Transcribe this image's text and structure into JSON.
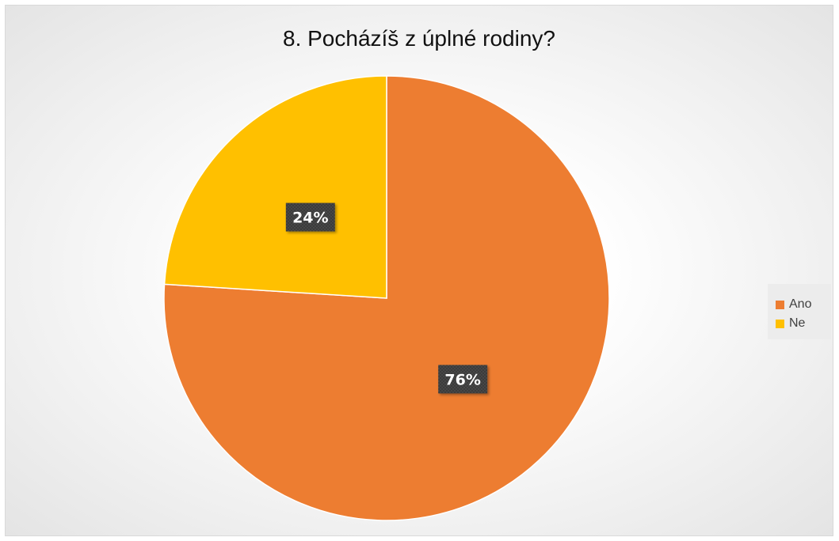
{
  "chart_data": {
    "type": "pie",
    "title": "8. Pocházíš z úplné rodiny?",
    "categories": [
      "Ano",
      "Ne"
    ],
    "values": [
      76,
      24
    ],
    "data_labels": [
      "76%",
      "24%"
    ],
    "colors": [
      "#ED7D31",
      "#FFC000"
    ],
    "start_angle": "12 o'clock",
    "direction": "clockwise",
    "legend_position": "right"
  }
}
